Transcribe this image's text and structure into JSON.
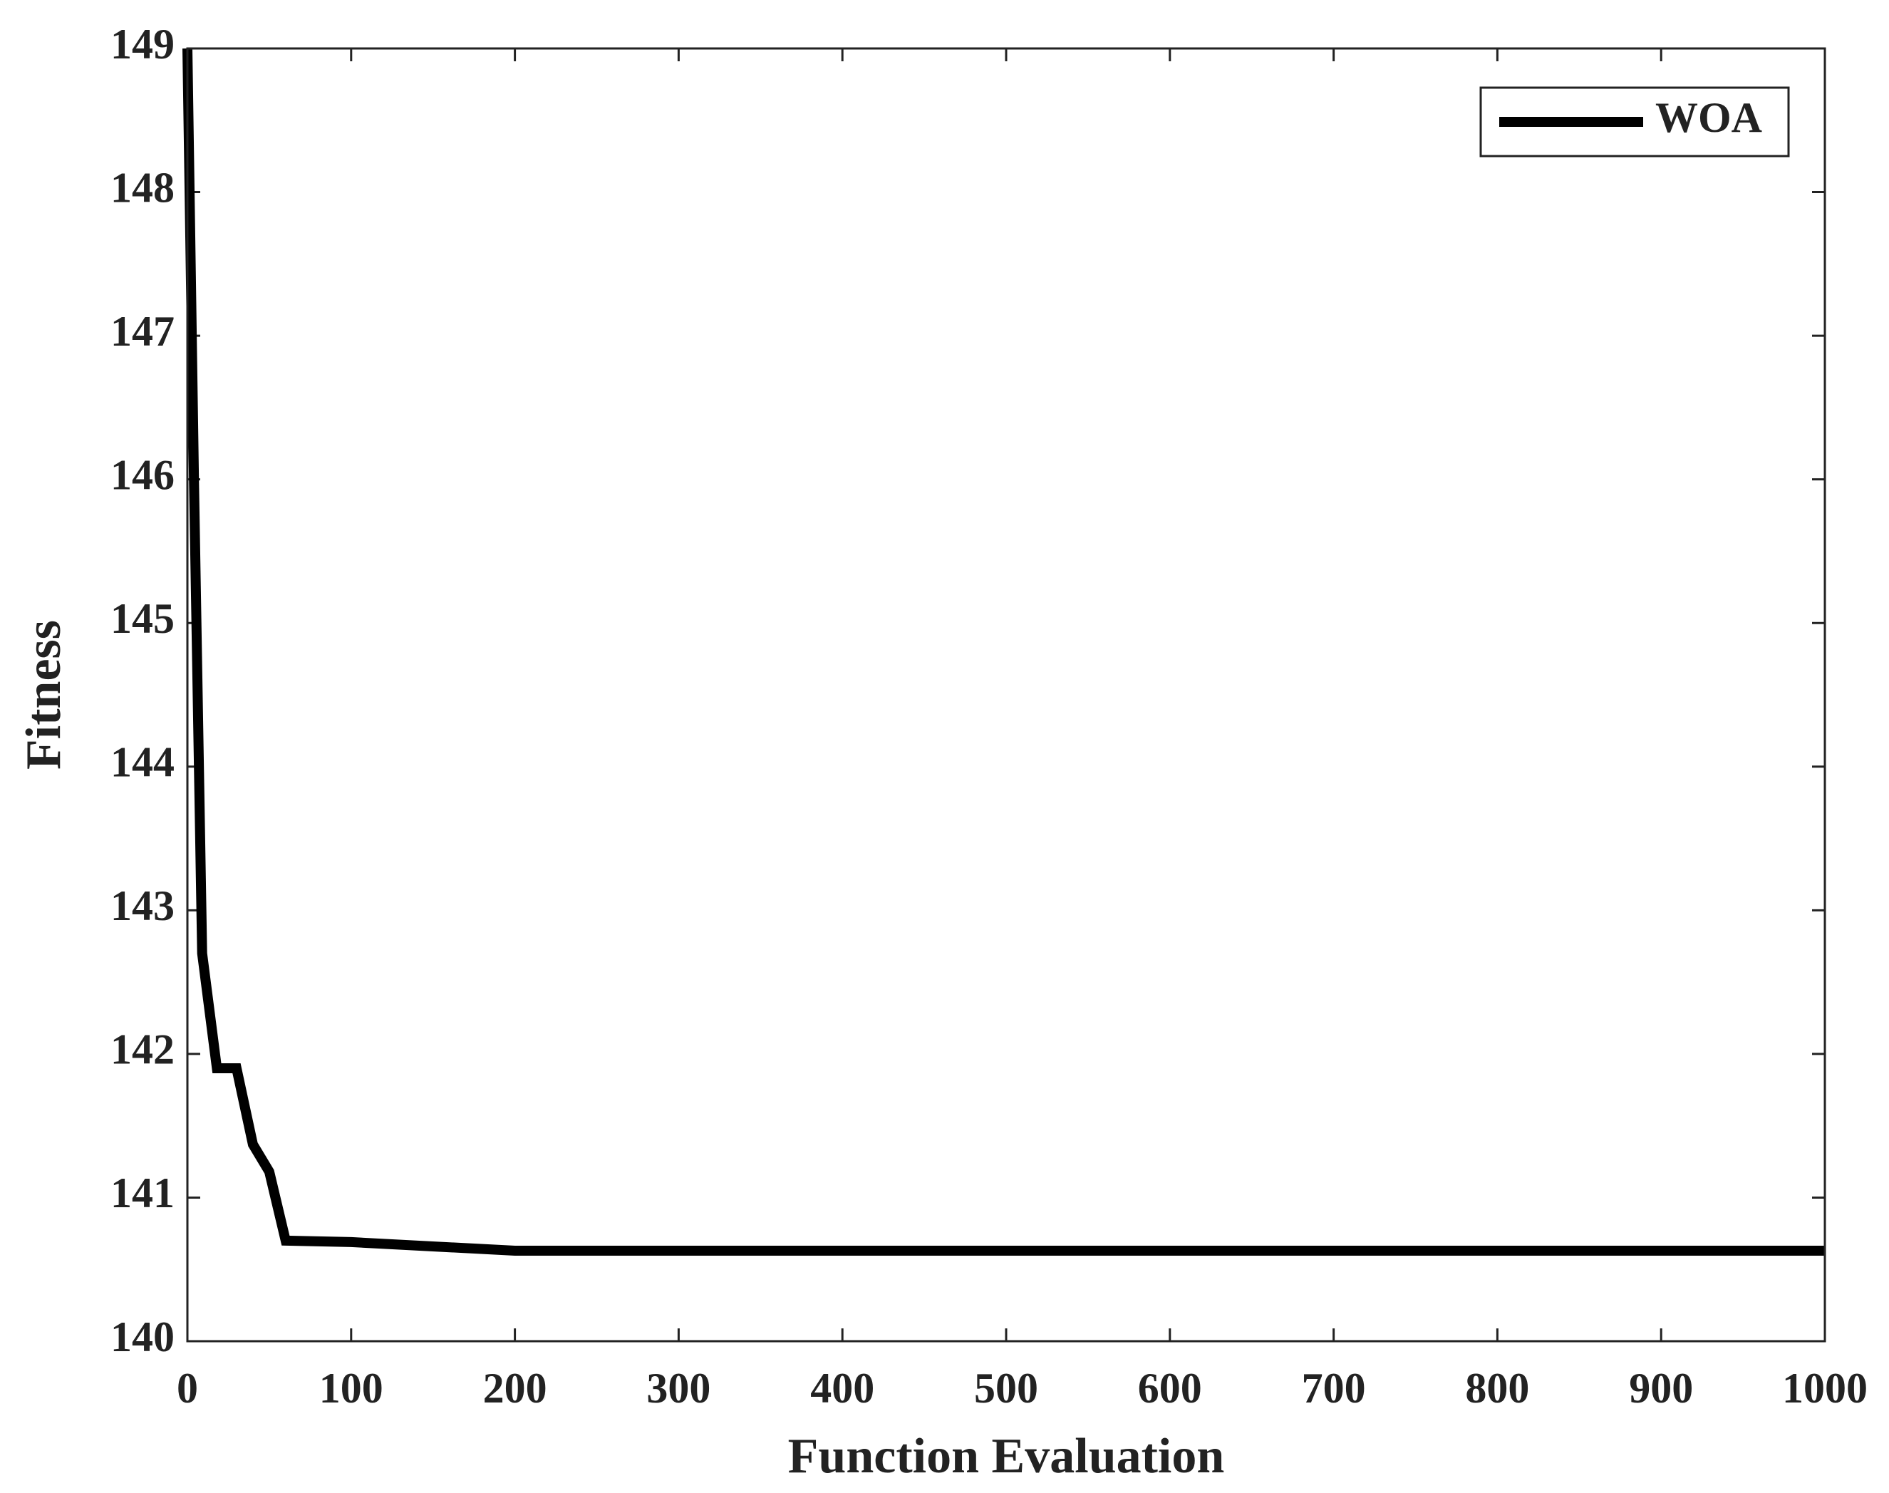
{
  "chart_data": {
    "type": "line",
    "xlabel": "Function Evaluation",
    "ylabel": "Fitness",
    "x": [
      0,
      4,
      9,
      18,
      30,
      40,
      50,
      60,
      100,
      200,
      1000
    ],
    "series": [
      {
        "name": "WOA",
        "color": "#000000",
        "values": [
          149,
          146,
          142.7,
          141.9,
          141.9,
          141.37,
          141.18,
          140.7,
          140.69,
          140.63,
          140.63
        ]
      }
    ],
    "xlim": [
      0,
      1000
    ],
    "xticks": [
      0,
      100,
      200,
      300,
      400,
      500,
      600,
      700,
      800,
      900,
      1000
    ],
    "ylim": [
      140,
      149
    ],
    "yticks": [
      140,
      141,
      142,
      143,
      144,
      145,
      146,
      147,
      148,
      149
    ],
    "grid": false,
    "legend": "upper right"
  }
}
